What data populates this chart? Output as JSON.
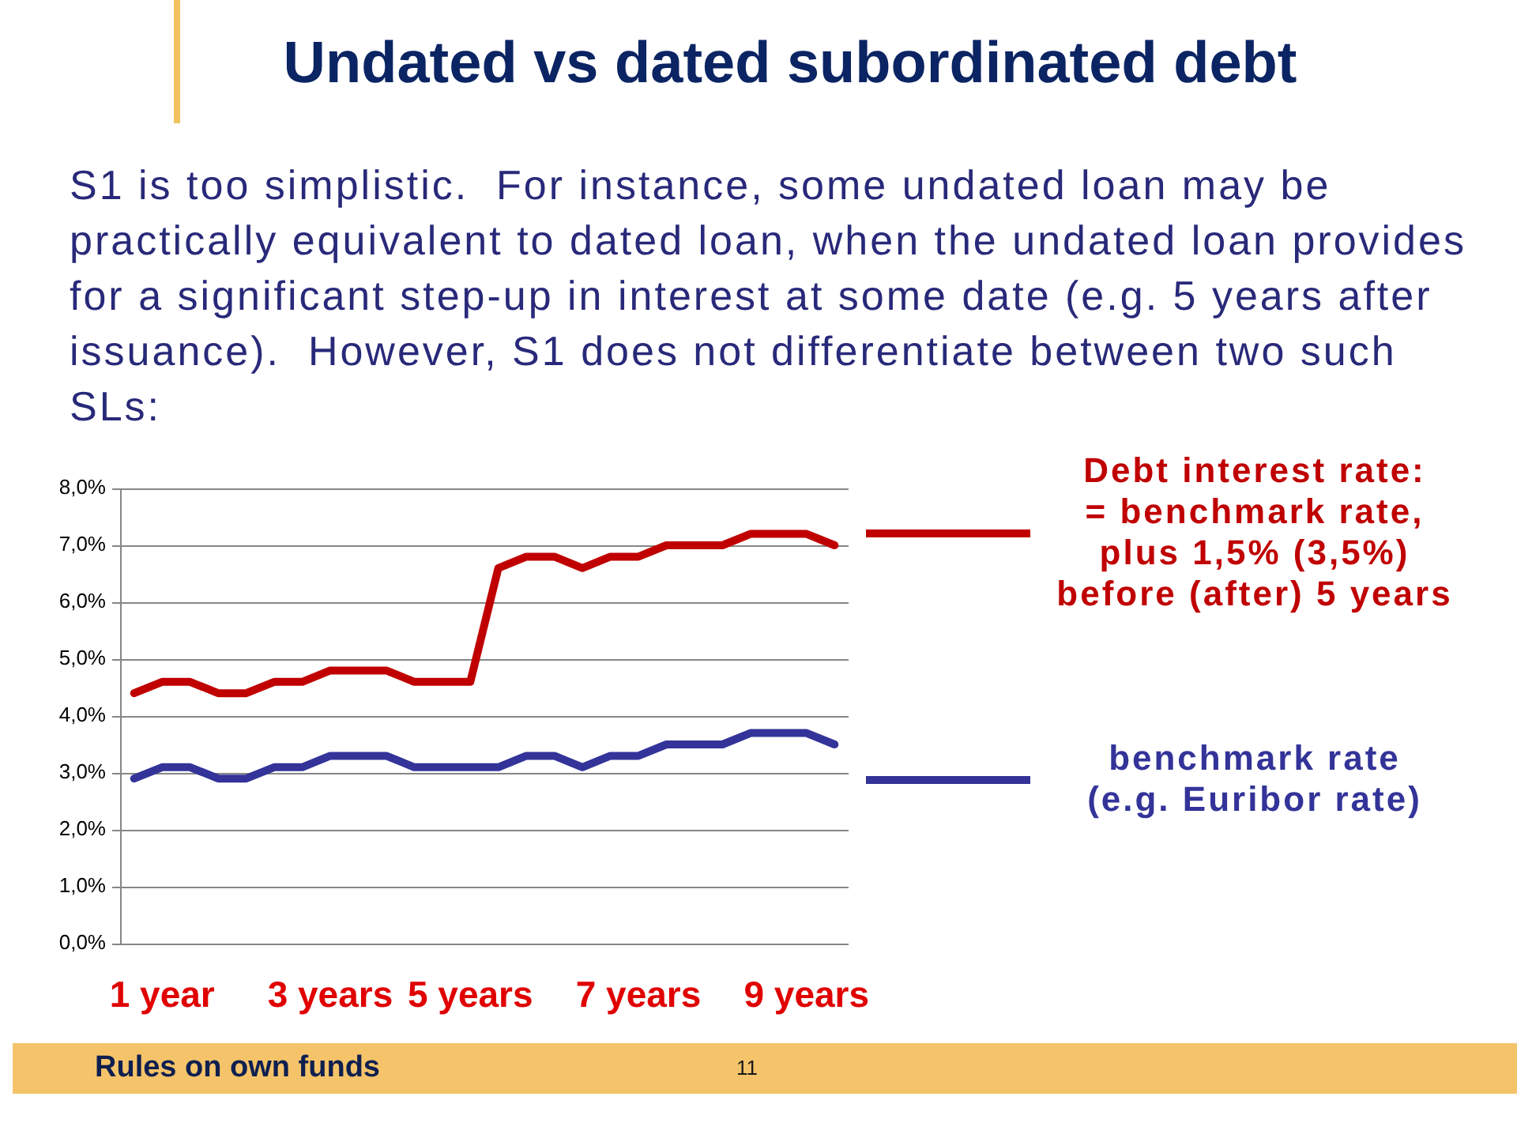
{
  "chart_data": {
    "type": "line",
    "title": "Undated vs dated subordinated debt",
    "subtitle": "S1 is too simplistic.  For instance, some undated loan may be practically equivalent to dated loan, when the undated loan provides for a significant step-up in interest at some date (e.g. 5 years after issuance).  However, S1 does not differentiate between two such SLs:",
    "categories": [
      null,
      "1 year",
      null,
      null,
      null,
      null,
      null,
      "3 years",
      null,
      null,
      null,
      null,
      "5 years",
      null,
      null,
      null,
      null,
      null,
      "7 years",
      null,
      null,
      null,
      null,
      null,
      "9 years",
      null
    ],
    "series": [
      {
        "name": "Debt interest rate:\n= benchmark rate,\nplus 1,5% (3,5%)\nbefore (after) 5 years",
        "color": "#c00000",
        "values": [
          4.4,
          4.6,
          4.6,
          4.4,
          4.4,
          4.6,
          4.6,
          4.8,
          4.8,
          4.8,
          4.6,
          4.6,
          4.6,
          6.6,
          6.8,
          6.8,
          6.6,
          6.8,
          6.8,
          7.0,
          7.0,
          7.0,
          7.2,
          7.2,
          7.2,
          7.0
        ]
      },
      {
        "name": "benchmark rate\n(e.g. Euribor rate)",
        "color": "#333399",
        "values": [
          2.9,
          3.1,
          3.1,
          2.9,
          2.9,
          3.1,
          3.1,
          3.3,
          3.3,
          3.3,
          3.1,
          3.1,
          3.1,
          3.1,
          3.3,
          3.3,
          3.1,
          3.3,
          3.3,
          3.5,
          3.5,
          3.5,
          3.7,
          3.7,
          3.7,
          3.5
        ]
      }
    ],
    "ylim": [
      0,
      8
    ],
    "yticks": [
      {
        "value": 0,
        "label": "0,0%"
      },
      {
        "value": 1,
        "label": "1,0%"
      },
      {
        "value": 2,
        "label": "2,0%"
      },
      {
        "value": 3,
        "label": "3,0%"
      },
      {
        "value": 4,
        "label": "4,0%"
      },
      {
        "value": 5,
        "label": "5,0%"
      },
      {
        "value": 6,
        "label": "6,0%"
      },
      {
        "value": 7,
        "label": "7,0%"
      },
      {
        "value": 8,
        "label": "8,0%"
      }
    ],
    "grid": "y",
    "legend": "right",
    "annotations": [
      "Rules on own funds",
      "11"
    ]
  }
}
